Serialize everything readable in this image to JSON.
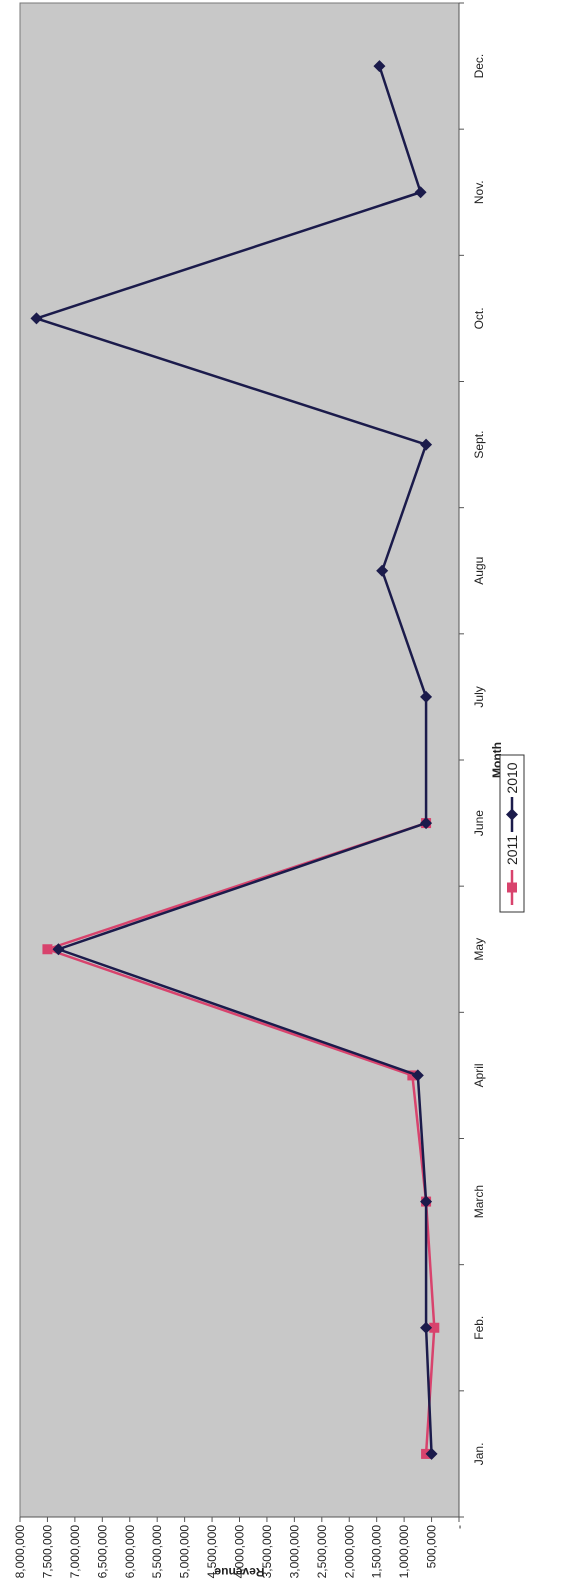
{
  "chart_data": {
    "type": "line",
    "orientation": "rotated-90-clockwise",
    "categories": [
      "Jan.",
      "Feb.",
      "March",
      "April",
      "May",
      "June",
      "July",
      "Augu",
      "Sept.",
      "Oct.",
      "Nov.",
      "Dec."
    ],
    "series": [
      {
        "name": "2011",
        "color": "#d8436d",
        "marker": "square",
        "values": [
          600000,
          450000,
          600000,
          850000,
          7500000,
          600000,
          null,
          null,
          null,
          null,
          null,
          null
        ]
      },
      {
        "name": "2010",
        "color": "#1b1b4b",
        "marker": "diamond",
        "values": [
          500000,
          600000,
          600000,
          750000,
          7300000,
          600000,
          600000,
          1400000,
          600000,
          7700000,
          700000,
          1450000
        ]
      }
    ],
    "title": "",
    "xlabel": "Month",
    "ylabel": "Revenue",
    "ylim": [
      0,
      8000000
    ],
    "yticks": [
      0,
      500000,
      1000000,
      1500000,
      2000000,
      2500000,
      3000000,
      3500000,
      4000000,
      4500000,
      5000000,
      5500000,
      6000000,
      6500000,
      7000000,
      7500000,
      8000000
    ],
    "ytick_labels": [
      "-",
      "500,000",
      "1,000,000",
      "1,500,000",
      "2,000,000",
      "2,500,000",
      "3,000,000",
      "3,500,000",
      "4,000,000",
      "4,500,000",
      "5,000,000",
      "5,500,000",
      "6,000,000",
      "6,500,000",
      "7,000,000",
      "7,500,000",
      "8,000,000"
    ],
    "grid": false,
    "legend_position": "bottom",
    "plot_background": "#c8c8c8"
  }
}
